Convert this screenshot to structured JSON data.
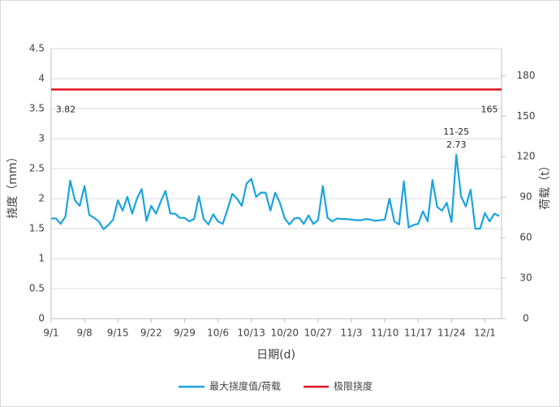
{
  "chart_data": {
    "type": "line",
    "x_label": "日期(d)",
    "y_label": "挠度（mm）",
    "y2_label": "荷载（t）",
    "categories": [
      "9/1",
      null,
      null,
      null,
      null,
      null,
      null,
      "9/8",
      null,
      null,
      null,
      null,
      null,
      null,
      "9/15",
      null,
      null,
      null,
      null,
      null,
      null,
      "9/22",
      null,
      null,
      null,
      null,
      null,
      null,
      "9/29",
      null,
      null,
      null,
      null,
      null,
      null,
      "10/6",
      null,
      null,
      null,
      null,
      null,
      null,
      "10/13",
      null,
      null,
      null,
      null,
      null,
      null,
      "10/20",
      null,
      null,
      null,
      null,
      null,
      null,
      "10/27",
      null,
      null,
      null,
      null,
      null,
      null,
      "11/3",
      null,
      null,
      null,
      null,
      null,
      null,
      "11/10",
      null,
      null,
      null,
      null,
      null,
      null,
      "11/17",
      null,
      null,
      null,
      null,
      null,
      null,
      "11/24",
      null,
      null,
      null,
      null,
      null,
      null,
      "12/1",
      null,
      null,
      null
    ],
    "series": [
      {
        "name": "最大挠度值/荷载",
        "color": "#1aa3e0",
        "values": [
          1.67,
          1.67,
          1.58,
          1.7,
          2.3,
          1.97,
          1.88,
          2.21,
          1.73,
          1.68,
          1.62,
          1.49,
          1.56,
          1.65,
          1.97,
          1.8,
          2.03,
          1.75,
          2.0,
          2.16,
          1.63,
          1.88,
          1.75,
          1.95,
          2.13,
          1.75,
          1.75,
          1.68,
          1.68,
          1.62,
          1.66,
          2.04,
          1.66,
          1.57,
          1.74,
          1.62,
          1.58,
          1.82,
          2.08,
          2.0,
          1.88,
          2.25,
          2.33,
          2.03,
          2.1,
          2.1,
          1.8,
          2.1,
          1.93,
          1.67,
          1.57,
          1.67,
          1.68,
          1.58,
          1.72,
          1.58,
          1.64,
          2.21,
          1.68,
          1.62,
          1.67,
          1.66,
          1.66,
          1.65,
          1.64,
          1.64,
          1.66,
          1.65,
          1.63,
          1.64,
          1.65,
          2.0,
          1.62,
          1.57,
          2.29,
          1.52,
          1.56,
          1.58,
          1.79,
          1.62,
          2.31,
          1.86,
          1.8,
          1.93,
          1.61,
          2.73,
          2.04,
          1.87,
          2.15,
          1.5,
          1.5,
          1.76,
          1.62,
          1.75,
          1.71
        ]
      }
    ],
    "reference_line": {
      "name": "极限挠度",
      "color": "#e0141e",
      "value": 3.82
    },
    "annotations": [
      "3.82",
      "165",
      "11-25",
      "2.73"
    ],
    "ylim": [
      0,
      4.5
    ],
    "yticks": [
      0,
      0.5,
      1,
      1.5,
      2,
      2.5,
      3,
      3.5,
      4,
      4.5
    ],
    "y2lim": [
      0,
      200
    ],
    "y2ticks": [
      0,
      30,
      60,
      90,
      120,
      150,
      180
    ],
    "grid": true,
    "legend": "bottom"
  }
}
